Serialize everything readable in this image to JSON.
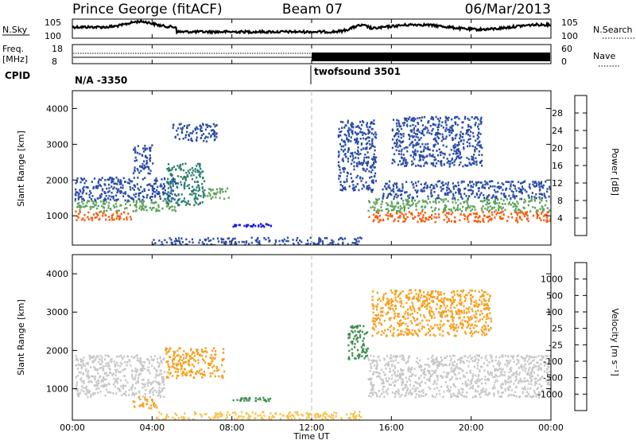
{
  "header": {
    "station": "Prince George (fitACF)",
    "beam": "Beam 07",
    "date": "06/Mar/2013"
  },
  "sky_panel": {
    "left_label": "N.Sky",
    "right_label": "N.Search",
    "left_ticks": [
      "10^5",
      "10^0"
    ],
    "right_ticks": [
      "10^5",
      "10^0"
    ]
  },
  "freq_panel": {
    "left_label_top": "Freq.",
    "left_label_bottom": "[MHz]",
    "left_ticks": [
      "18",
      "8"
    ],
    "right_label": "Nave",
    "right_ticks": [
      "60",
      "0"
    ]
  },
  "cpid_panel": {
    "label": "CPID",
    "segments": [
      {
        "label": "N/A  -3350",
        "start_hour": 0,
        "end_hour": 12
      },
      {
        "label": "twofsound  3501",
        "start_hour": 12,
        "end_hour": 24
      }
    ]
  },
  "chart_data": [
    {
      "type": "heatmap",
      "panel": "power",
      "ylabel": "Slant Range [km]",
      "ylim": [
        180,
        4500
      ],
      "xlim": [
        0,
        24
      ],
      "yticks": [
        "1000",
        "2000",
        "3000",
        "4000"
      ],
      "colorbar_label": "Power [dB]",
      "colorbar_ticks": [
        "28",
        "24",
        "20",
        "16",
        "12",
        "8",
        "4"
      ],
      "colorbar_colors": [
        "#e0101a",
        "#f85a0a",
        "#f9a314",
        "#d4c81c",
        "#5ea35b",
        "#2e7f72",
        "#2a4ca8",
        "#1a1ae6"
      ],
      "echo_regions": [
        {
          "x0": 0.1,
          "x1": 3.0,
          "y0": 900,
          "y1": 1150,
          "level": 26
        },
        {
          "x0": 0.1,
          "x1": 5.3,
          "y0": 1150,
          "y1": 1450,
          "level": 14
        },
        {
          "x0": 0.1,
          "x1": 5.3,
          "y0": 1450,
          "y1": 2100,
          "level": 6
        },
        {
          "x0": 4.7,
          "x1": 6.6,
          "y0": 1300,
          "y1": 2500,
          "level": 12
        },
        {
          "x0": 6.6,
          "x1": 7.8,
          "y0": 1500,
          "y1": 1800,
          "level": 14
        },
        {
          "x0": 3.0,
          "x1": 4.0,
          "y0": 2200,
          "y1": 3000,
          "level": 5
        },
        {
          "x0": 5.0,
          "x1": 7.2,
          "y0": 3100,
          "y1": 3600,
          "level": 5
        },
        {
          "x0": 4.0,
          "x1": 14.5,
          "y0": 200,
          "y1": 420,
          "level": 6
        },
        {
          "x0": 8.0,
          "x1": 10.0,
          "y0": 720,
          "y1": 800,
          "level": 4
        },
        {
          "x0": 13.3,
          "x1": 15.2,
          "y0": 1700,
          "y1": 3700,
          "level": 6
        },
        {
          "x0": 14.8,
          "x1": 24.0,
          "y0": 850,
          "y1": 1150,
          "level": 26
        },
        {
          "x0": 14.8,
          "x1": 24.0,
          "y0": 1150,
          "y1": 1500,
          "level": 16
        },
        {
          "x0": 15.5,
          "x1": 24.0,
          "y0": 1500,
          "y1": 2000,
          "level": 8
        },
        {
          "x0": 16.0,
          "x1": 20.5,
          "y0": 2400,
          "y1": 3800,
          "level": 5
        }
      ]
    },
    {
      "type": "heatmap",
      "panel": "velocity",
      "ylabel": "Slant Range [km]",
      "xlabel": "Time UT",
      "ylim": [
        180,
        4500
      ],
      "xlim": [
        0,
        24
      ],
      "yticks": [
        "1000",
        "2000",
        "3000",
        "4000"
      ],
      "xticks": [
        "00:00",
        "04:00",
        "08:00",
        "12:00",
        "16:00",
        "20:00",
        "00:00"
      ],
      "colorbar_label": "Velocity [m s^-1]",
      "colorbar_ticks": [
        "1000",
        "500",
        "100",
        "25",
        "-25",
        "-100",
        "-500",
        "-1000"
      ],
      "colorbar_colors": [
        "#1a30b0",
        "#3a6aa0",
        "#3f8f4f",
        "#68cc3a",
        "#c8c8c8",
        "#f7c24a",
        "#f5a020",
        "#f07010",
        "#e0101a"
      ],
      "echo_regions": [
        {
          "x0": 0.1,
          "x1": 4.6,
          "y0": 800,
          "y1": 1900,
          "level": 0
        },
        {
          "x0": 4.6,
          "x1": 7.6,
          "y0": 1300,
          "y1": 2100,
          "level": -300
        },
        {
          "x0": 3.0,
          "x1": 4.2,
          "y0": 500,
          "y1": 800,
          "level": -150
        },
        {
          "x0": 8.0,
          "x1": 10.0,
          "y0": 700,
          "y1": 800,
          "level": 150
        },
        {
          "x0": 4.0,
          "x1": 14.5,
          "y0": 200,
          "y1": 420,
          "level": -40
        },
        {
          "x0": 13.8,
          "x1": 14.8,
          "y0": 1800,
          "y1": 2700,
          "level": 150
        },
        {
          "x0": 14.8,
          "x1": 24.0,
          "y0": 800,
          "y1": 1900,
          "level": 0
        },
        {
          "x0": 15.0,
          "x1": 21.0,
          "y0": 2400,
          "y1": 3600,
          "level": -200
        }
      ]
    }
  ]
}
